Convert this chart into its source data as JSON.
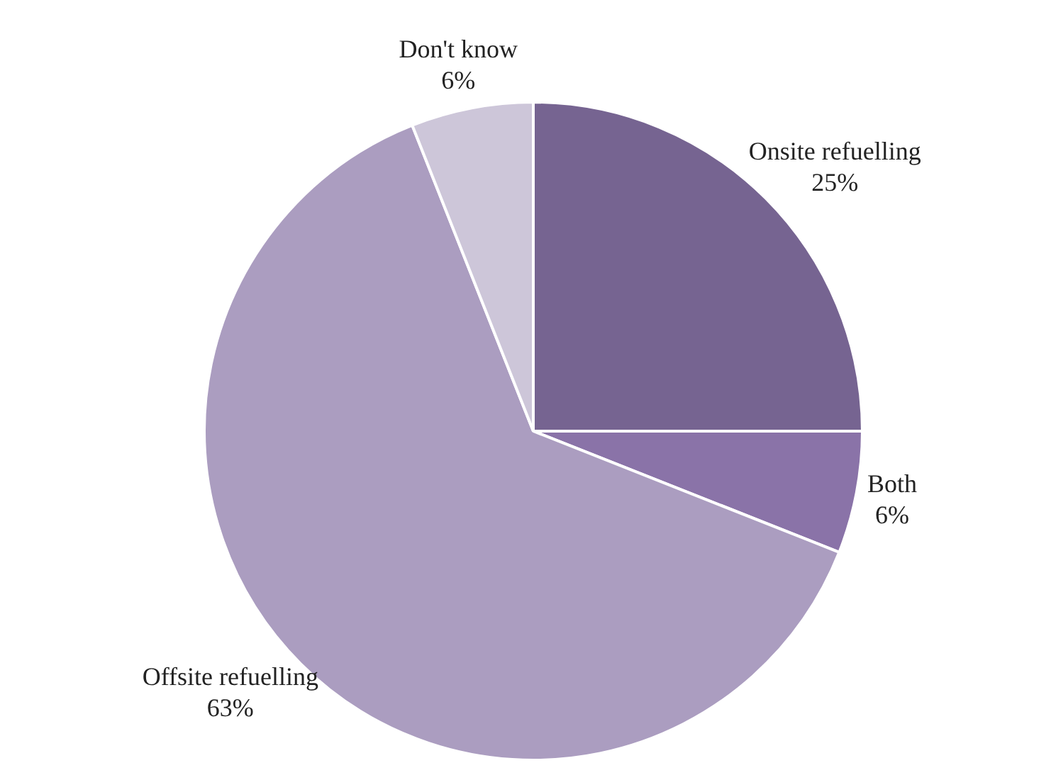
{
  "chart_data": {
    "type": "pie",
    "categories": [
      "Onsite refuelling",
      "Both",
      "Offsite refuelling",
      "Don't know"
    ],
    "values": [
      25,
      6,
      63,
      6
    ],
    "value_labels": [
      "25%",
      "6%",
      "63%",
      "6%"
    ],
    "colors": [
      "#766491",
      "#8a73a8",
      "#ab9dc0",
      "#cdc6d9"
    ],
    "legend": false
  }
}
